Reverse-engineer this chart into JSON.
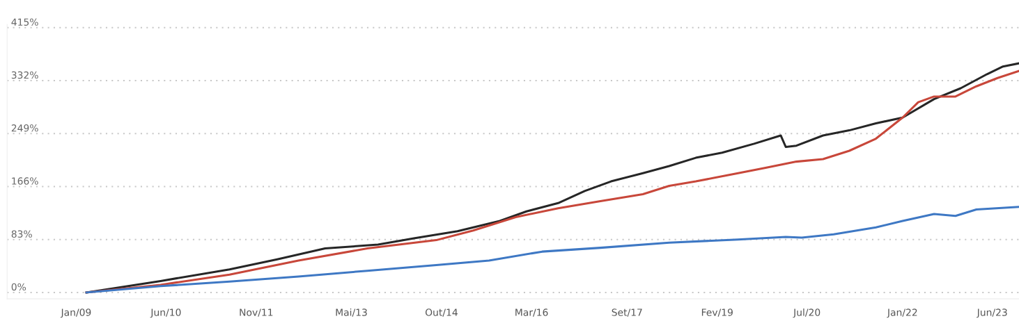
{
  "chart_data": {
    "type": "line",
    "x": [
      "2009-03",
      "2010-05",
      "2011-06",
      "2012-03",
      "2012-12",
      "2013-10",
      "2014-05",
      "2015-01",
      "2015-09",
      "2016-02",
      "2016-08",
      "2017-01",
      "2017-06",
      "2017-12",
      "2018-05",
      "2018-10",
      "2019-03",
      "2019-09",
      "2020-02",
      "2020-03",
      "2020-05",
      "2020-10",
      "2021-03",
      "2021-08",
      "2022-01",
      "2022-07",
      "2022-12",
      "2023-05",
      "2023-08",
      "2023-11"
    ],
    "series": [
      {
        "color": "#262626",
        "values": [
          0,
          18,
          36,
          52,
          69,
          75,
          85,
          96,
          112,
          127,
          140,
          159,
          174,
          187,
          198,
          211,
          219,
          233,
          246,
          228,
          230,
          246,
          254,
          265,
          274,
          303,
          320,
          342,
          354,
          359
        ]
      },
      {
        "color": "#c8473a",
        "x": [
          "2009-03",
          "2010-05",
          "2011-06",
          "2012-07",
          "2013-08",
          "2014-09",
          "2015-04",
          "2015-12",
          "2016-08",
          "2017-04",
          "2017-12",
          "2018-05",
          "2018-10",
          "2019-06",
          "2019-11",
          "2020-05",
          "2020-10",
          "2021-03",
          "2021-08",
          "2022-01",
          "2022-04",
          "2022-07",
          "2022-11",
          "2023-03",
          "2023-07",
          "2023-11"
        ],
        "values": [
          0,
          12,
          28,
          50,
          69,
          82,
          97,
          118,
          132,
          143,
          154,
          167,
          174,
          187,
          195,
          205,
          209,
          222,
          241,
          274,
          298,
          307,
          307,
          323,
          336,
          347
        ]
      },
      {
        "color": "#3e78c4",
        "x": [
          "2009-03",
          "2010-05",
          "2011-06",
          "2012-07",
          "2013-08",
          "2014-09",
          "2015-07",
          "2016-05",
          "2017-04",
          "2018-05",
          "2019-06",
          "2020-03",
          "2020-06",
          "2020-12",
          "2021-08",
          "2022-01",
          "2022-07",
          "2022-11",
          "2023-03",
          "2023-11"
        ],
        "values": [
          0,
          10,
          17,
          25,
          34,
          43,
          50,
          64,
          70,
          78,
          83,
          87,
          86,
          91,
          102,
          112,
          123,
          120,
          130,
          134
        ]
      }
    ],
    "xlim": [
      "2007-12",
      "2023-11"
    ],
    "xticks": [
      {
        "value": "2009-01",
        "label": "Jan/09"
      },
      {
        "value": "2010-06",
        "label": "Jun/10"
      },
      {
        "value": "2011-11",
        "label": "Nov/11"
      },
      {
        "value": "2013-05",
        "label": "Mai/13"
      },
      {
        "value": "2014-10",
        "label": "Out/14"
      },
      {
        "value": "2016-03",
        "label": "Mar/16"
      },
      {
        "value": "2017-09",
        "label": "Set/17"
      },
      {
        "value": "2019-02",
        "label": "Fev/19"
      },
      {
        "value": "2020-07",
        "label": "Jul/20"
      },
      {
        "value": "2022-01",
        "label": "Jan/22"
      },
      {
        "value": "2023-06",
        "label": "Jun/23"
      }
    ],
    "ylim": [
      -10,
      420
    ],
    "yticks": [
      {
        "value": 0,
        "label": "0%"
      },
      {
        "value": 83,
        "label": "83%"
      },
      {
        "value": 166,
        "label": "166%"
      },
      {
        "value": 249,
        "label": "249%"
      },
      {
        "value": 332,
        "label": "332%"
      },
      {
        "value": 415,
        "label": "415%"
      }
    ],
    "grid": "y",
    "marker": "none",
    "line_style": "solid"
  }
}
